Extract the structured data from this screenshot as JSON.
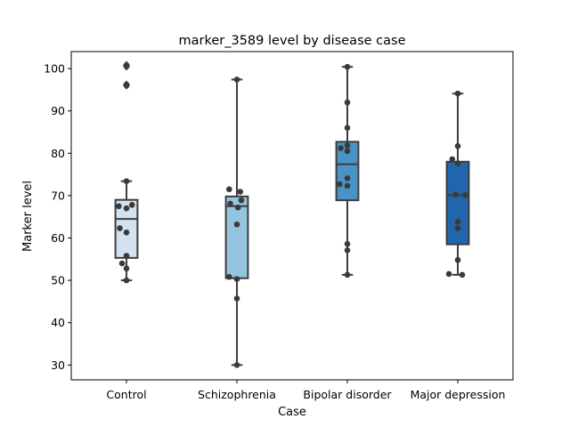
{
  "chart_data": {
    "type": "box",
    "title": "marker_3589 level by disease case",
    "xlabel": "Case",
    "ylabel": "Marker level",
    "ylim": [
      26.5,
      104
    ],
    "yticks": [
      30,
      40,
      50,
      60,
      70,
      80,
      90,
      100
    ],
    "grid": false,
    "categories": [
      "Control",
      "Schizophrenia",
      "Bipolar disorder",
      "Major depression"
    ],
    "colors": [
      "#d3e2f1",
      "#94c4de",
      "#4a94c5",
      "#2166ac"
    ],
    "boxes": [
      {
        "q1": 55.3,
        "median": 64.5,
        "q3": 69.0,
        "whisker_low": 50.0,
        "whisker_high": 73.4,
        "outliers": [
          96.0,
          96.2,
          100.5,
          100.8
        ]
      },
      {
        "q1": 50.5,
        "median": 67.5,
        "q3": 69.8,
        "whisker_low": 30.0,
        "whisker_high": 97.4,
        "outliers": []
      },
      {
        "q1": 68.9,
        "median": 77.4,
        "q3": 82.7,
        "whisker_low": 51.3,
        "whisker_high": 100.4,
        "outliers": []
      },
      {
        "q1": 58.5,
        "median": 70.1,
        "q3": 78.0,
        "whisker_low": 51.3,
        "whisker_high": 94.1,
        "outliers": []
      }
    ],
    "points": [
      {
        "values": [
          50.0,
          52.8,
          54.0,
          55.8,
          61.3,
          62.3,
          67.0,
          67.5,
          67.8,
          73.4,
          96.0,
          96.2,
          100.5,
          100.8
        ],
        "offsets": [
          0,
          0,
          -0.04,
          0,
          0,
          -0.06,
          0,
          -0.07,
          0.05,
          0,
          0,
          0,
          0,
          0
        ]
      },
      {
        "values": [
          30.0,
          45.7,
          50.3,
          50.8,
          63.2,
          67.2,
          68.1,
          68.9,
          70.9,
          71.5,
          97.4
        ],
        "offsets": [
          0,
          0,
          0,
          -0.07,
          0,
          0.01,
          -0.06,
          0.04,
          0.03,
          -0.07,
          0
        ]
      },
      {
        "values": [
          51.3,
          57.1,
          58.6,
          72.3,
          72.7,
          74.1,
          80.5,
          81.2,
          81.8,
          86.0,
          92.0,
          100.4
        ],
        "offsets": [
          0,
          0,
          0,
          0,
          -0.07,
          0,
          0,
          -0.06,
          0,
          0,
          0,
          0
        ]
      },
      {
        "values": [
          51.3,
          51.5,
          54.8,
          62.3,
          63.8,
          70.1,
          70.2,
          77.6,
          78.6,
          81.7,
          94.1
        ],
        "offsets": [
          0.04,
          -0.08,
          0,
          0,
          0,
          0.07,
          -0.02,
          0,
          -0.05,
          0,
          0
        ]
      }
    ]
  }
}
